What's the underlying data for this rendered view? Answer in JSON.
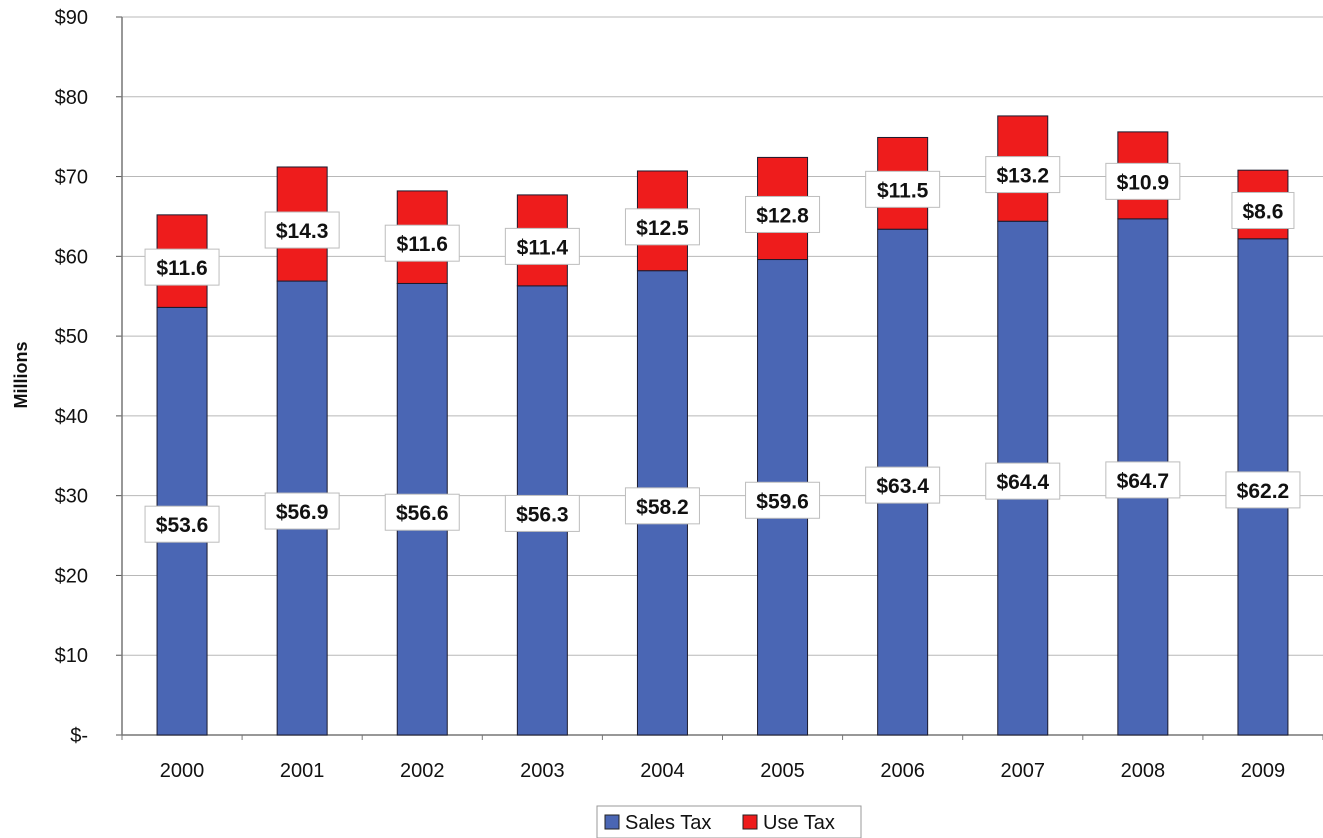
{
  "chart_data": {
    "type": "bar",
    "stacked": true,
    "title": "",
    "xlabel": "",
    "ylabel": "Millions",
    "categories": [
      "2000",
      "2001",
      "2002",
      "2003",
      "2004",
      "2005",
      "2006",
      "2007",
      "2008",
      "2009"
    ],
    "series": [
      {
        "name": "Sales Tax",
        "color": "#4a66b4",
        "values": [
          53.6,
          56.9,
          56.6,
          56.3,
          58.2,
          59.6,
          63.4,
          64.4,
          64.7,
          62.2
        ],
        "labels": [
          "$53.6",
          "$56.9",
          "$56.6",
          "$56.3",
          "$58.2",
          "$59.6",
          "$63.4",
          "$64.4",
          "$64.7",
          "$62.2"
        ]
      },
      {
        "name": "Use Tax",
        "color": "#ee1c1c",
        "values": [
          11.6,
          14.3,
          11.6,
          11.4,
          12.5,
          12.8,
          11.5,
          13.2,
          10.9,
          8.6
        ],
        "labels": [
          "$11.6",
          "$14.3",
          "$11.6",
          "$11.4",
          "$12.5",
          "$12.8",
          "$11.5",
          "$13.2",
          "$10.9",
          "$8.6"
        ]
      }
    ],
    "ylim": [
      0,
      90
    ],
    "yticks": [
      0,
      10,
      20,
      30,
      40,
      50,
      60,
      70,
      80,
      90
    ],
    "ytick_labels": [
      "$-",
      "$10",
      "$20",
      "$30",
      "$40",
      "$50",
      "$60",
      "$70",
      "$80",
      "$90"
    ],
    "grid": true,
    "legend_position": "bottom-center"
  }
}
